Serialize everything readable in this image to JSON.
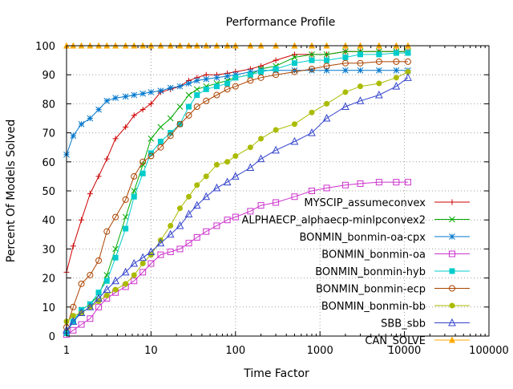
{
  "chart_data": {
    "type": "line",
    "title": "Performance Profile",
    "xlabel": "Time Factor",
    "ylabel": "Percent Of Models Solved",
    "xscale": "log",
    "xlim": [
      1,
      100000
    ],
    "ylim": [
      0,
      100
    ],
    "x_ticks": [
      1,
      10,
      100,
      1000,
      10000,
      100000
    ],
    "x_tick_labels": [
      "1",
      "10",
      "100",
      "1000",
      "10000",
      "100000"
    ],
    "y_ticks": [
      0,
      10,
      20,
      30,
      40,
      50,
      60,
      70,
      80,
      90,
      100
    ],
    "grid": true,
    "legend_position": "bottom-right, inside plot",
    "series": [
      {
        "name": "MYSCIP_assumeconvex",
        "color": "#cc0000",
        "marker": "plus",
        "x": [
          1,
          1.2,
          1.5,
          1.9,
          2.4,
          3,
          3.8,
          5,
          6.3,
          8,
          10,
          13,
          17,
          22,
          28,
          35,
          45,
          60,
          80,
          100,
          150,
          200,
          300,
          500,
          800,
          1200,
          2000,
          3000,
          5000,
          8000,
          11000
        ],
        "y": [
          22,
          31,
          40,
          49,
          55,
          61,
          68,
          72,
          76,
          78,
          80,
          84,
          85,
          86,
          88,
          89,
          90,
          90,
          90.5,
          91,
          92,
          93,
          95,
          97,
          97,
          97,
          98,
          98,
          98,
          98,
          98
        ]
      },
      {
        "name": "ALPHAECP_alphaecp-minlpconvex2",
        "color": "#00aa00",
        "marker": "cross",
        "x": [
          1,
          1.2,
          1.5,
          1.9,
          2.4,
          3,
          3.8,
          5,
          6.3,
          8,
          10,
          13,
          17,
          22,
          28,
          35,
          45,
          60,
          80,
          100,
          150,
          200,
          300,
          500,
          800,
          1200,
          2000,
          3000,
          5000,
          8000,
          11000
        ],
        "y": [
          1,
          5,
          9,
          11,
          14,
          21,
          30,
          41,
          50,
          59,
          68,
          72,
          75,
          79,
          83,
          85,
          86,
          87,
          88,
          89,
          90,
          92,
          93,
          96,
          97,
          97,
          98,
          98,
          98,
          98,
          98
        ]
      },
      {
        "name": "BONMIN_bonmin-oa-cpx",
        "color": "#0077cc",
        "marker": "star",
        "x": [
          1,
          1.2,
          1.5,
          1.9,
          2.4,
          3,
          3.8,
          5,
          6.3,
          8,
          10,
          13,
          17,
          22,
          28,
          35,
          45,
          60,
          80,
          100,
          150,
          200,
          300,
          500,
          800,
          1200,
          2000,
          3000,
          5000,
          8000,
          11000
        ],
        "y": [
          62.5,
          69,
          73,
          75,
          78,
          81,
          82,
          82.5,
          83,
          83.5,
          84,
          84.5,
          85.5,
          86,
          87,
          88,
          88.5,
          89,
          89.5,
          90,
          91,
          91.5,
          91.5,
          91.5,
          91.5,
          91.5,
          91.5,
          91.5,
          91.5,
          91.5,
          91.5
        ]
      },
      {
        "name": "BONMIN_bonmin-oa",
        "color": "#cc33cc",
        "marker": "square-open",
        "x": [
          1,
          1.2,
          1.5,
          1.9,
          2.4,
          3,
          3.8,
          5,
          6.3,
          8,
          10,
          13,
          17,
          22,
          28,
          35,
          45,
          60,
          80,
          100,
          150,
          200,
          300,
          500,
          800,
          1200,
          2000,
          3000,
          5000,
          8000,
          11000
        ],
        "y": [
          0.5,
          2,
          4,
          6,
          10,
          13,
          15,
          17,
          19,
          22,
          25,
          28,
          29,
          30,
          32,
          34,
          36,
          38,
          40,
          41,
          43,
          45,
          46,
          48,
          50,
          51,
          52,
          52.5,
          53,
          53,
          53
        ]
      },
      {
        "name": "BONMIN_bonmin-hyb",
        "color": "#00cccc",
        "marker": "square-filled",
        "x": [
          1,
          1.2,
          1.5,
          1.9,
          2.4,
          3,
          3.8,
          5,
          6.3,
          8,
          10,
          13,
          17,
          22,
          28,
          35,
          45,
          60,
          80,
          100,
          150,
          200,
          300,
          500,
          800,
          1200,
          2000,
          3000,
          5000,
          8000,
          11000
        ],
        "y": [
          1,
          5,
          9,
          11,
          15,
          19,
          27,
          37,
          48,
          56,
          63,
          67,
          70,
          73,
          79,
          83,
          85,
          86,
          87,
          89,
          90,
          91,
          92,
          94,
          95,
          95,
          96,
          97,
          97,
          97.5,
          97.5
        ]
      },
      {
        "name": "BONMIN_bonmin-ecp",
        "color": "#aa4400",
        "marker": "circle-open",
        "x": [
          1,
          1.2,
          1.5,
          1.9,
          2.4,
          3,
          3.8,
          5,
          6.3,
          8,
          10,
          13,
          17,
          22,
          28,
          35,
          45,
          60,
          80,
          100,
          150,
          200,
          300,
          500,
          800,
          1200,
          2000,
          3000,
          5000,
          8000,
          11000
        ],
        "y": [
          3,
          10,
          18,
          21,
          26,
          36,
          41,
          47,
          55,
          60,
          62,
          65,
          69,
          73,
          76,
          79,
          81,
          83,
          85,
          86,
          88,
          89,
          90,
          91,
          92,
          93,
          94,
          94,
          94.5,
          94.5,
          94.5
        ]
      },
      {
        "name": "BONMIN_bonmin-bb",
        "color": "#aabb00",
        "marker": "circle-filled",
        "x": [
          1,
          1.2,
          1.5,
          1.9,
          2.4,
          3,
          3.8,
          5,
          6.3,
          8,
          10,
          13,
          17,
          22,
          28,
          35,
          45,
          60,
          80,
          100,
          150,
          200,
          300,
          500,
          800,
          1200,
          2000,
          3000,
          5000,
          8000,
          11000
        ],
        "y": [
          5,
          7,
          8,
          10,
          12,
          14,
          16,
          18,
          21,
          25,
          28,
          33,
          38,
          44,
          48,
          52,
          55,
          59,
          60,
          62,
          65,
          68,
          71,
          73,
          77,
          80,
          84,
          86,
          87,
          89,
          91
        ]
      },
      {
        "name": "SBB_sbb",
        "color": "#3344cc",
        "marker": "triangle-open",
        "x": [
          1,
          1.2,
          1.5,
          1.9,
          2.4,
          3,
          3.8,
          5,
          6.3,
          8,
          10,
          13,
          17,
          22,
          28,
          35,
          45,
          60,
          80,
          100,
          150,
          200,
          300,
          500,
          800,
          1200,
          2000,
          3000,
          5000,
          8000,
          11000
        ],
        "y": [
          2,
          5,
          8,
          10,
          13,
          16,
          19,
          22,
          25,
          27,
          29,
          32,
          35,
          38,
          42,
          45,
          48,
          51,
          53,
          55,
          58,
          61,
          64,
          67,
          70,
          75,
          79,
          81,
          83,
          86,
          89
        ]
      },
      {
        "name": "CAN_SOLVE",
        "color": "#ffaa00",
        "marker": "triangle-filled",
        "x": [
          1,
          1.2,
          1.5,
          1.9,
          2.4,
          3,
          3.8,
          5,
          6.3,
          8,
          10,
          13,
          17,
          22,
          28,
          35,
          45,
          60,
          80,
          100,
          150,
          200,
          300,
          500,
          800,
          1200,
          2000,
          3000,
          5000,
          8000,
          11000
        ],
        "y": [
          100,
          100,
          100,
          100,
          100,
          100,
          100,
          100,
          100,
          100,
          100,
          100,
          100,
          100,
          100,
          100,
          100,
          100,
          100,
          100,
          100,
          100,
          100,
          100,
          100,
          100,
          100,
          100,
          100,
          100,
          100
        ]
      }
    ]
  }
}
